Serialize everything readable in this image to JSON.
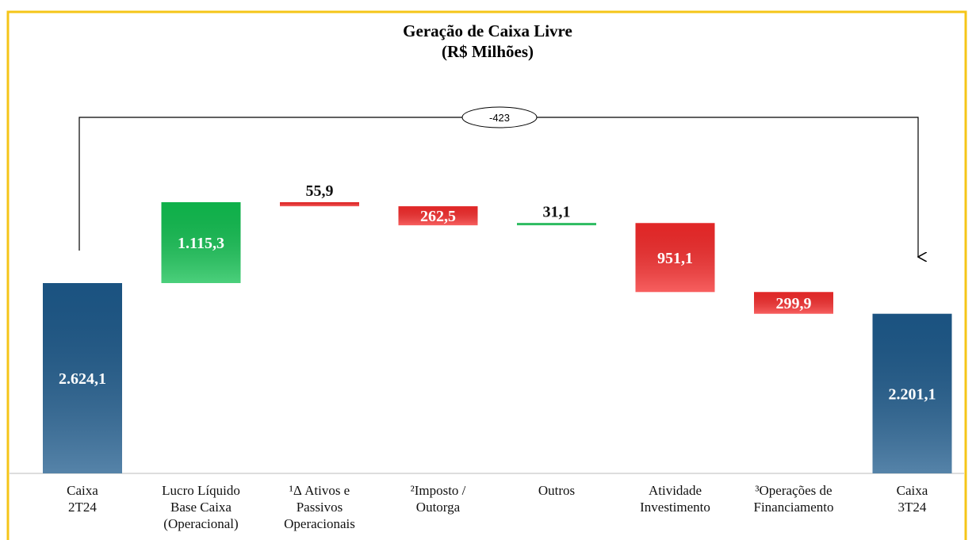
{
  "chart_data": {
    "type": "waterfall",
    "title": "Geração de Caixa Livre",
    "subtitle": "(R$ Milhões)",
    "categories": [
      "Caixa\n2T24",
      "Lucro Líquido\nBase Caixa\n(Operacional)",
      "¹Δ Ativos e\nPassivos\nOperacionais",
      "²Imposto /\nOutorga",
      "Outros",
      "Atividade\nInvestimento",
      "³Operações de\nFinanciamento",
      "Caixa\n3T24"
    ],
    "values": [
      2624.1,
      1115.3,
      -55.9,
      -262.5,
      31.1,
      -951.1,
      -299.9,
      2201.1
    ],
    "value_labels": [
      "2.624,1",
      "1.115,3",
      "55,9",
      "262,5",
      "31,1",
      "951,1",
      "299,9",
      "2.201,1"
    ],
    "measures": [
      "total",
      "relative",
      "relative",
      "relative",
      "relative",
      "relative",
      "relative",
      "total"
    ],
    "total_color": "#1d5a8c",
    "increase_color": "#10c050",
    "decrease_color": "#f52a2a",
    "annotation": "-423"
  }
}
